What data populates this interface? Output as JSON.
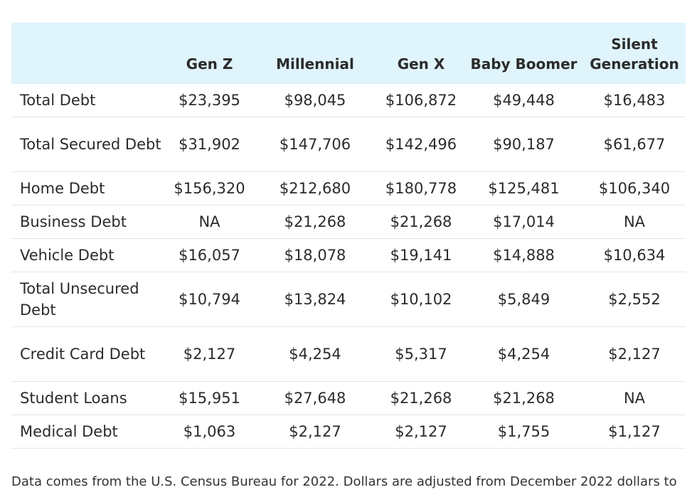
{
  "table": {
    "headers": [
      "",
      "Gen Z",
      "Millennial",
      "Gen X",
      "Baby Boomer",
      "Silent Generation"
    ],
    "rows": [
      {
        "label": "Total Debt",
        "values": [
          "$23,395",
          "$98,045",
          "$106,872",
          "$49,448",
          "$16,483"
        ]
      },
      {
        "label": "Total Secured Debt",
        "values": [
          "$31,902",
          "$147,706",
          "$142,496",
          "$90,187",
          "$61,677"
        ]
      },
      {
        "label": "Home Debt",
        "values": [
          "$156,320",
          "$212,680",
          "$180,778",
          "$125,481",
          "$106,340"
        ]
      },
      {
        "label": "Business Debt",
        "values": [
          "NA",
          "$21,268",
          "$21,268",
          "$17,014",
          "NA"
        ]
      },
      {
        "label": "Vehicle Debt",
        "values": [
          "$16,057",
          "$18,078",
          "$19,141",
          "$14,888",
          "$10,634"
        ]
      },
      {
        "label": "Total Unsecured Debt",
        "values": [
          "$10,794",
          "$13,824",
          "$10,102",
          "$5,849",
          "$2,552"
        ]
      },
      {
        "label": "Credit Card Debt",
        "values": [
          "$2,127",
          "$4,254",
          "$5,317",
          "$4,254",
          "$2,127"
        ]
      },
      {
        "label": "Student Loans",
        "values": [
          "$15,951",
          "$27,648",
          "$21,268",
          "$21,268",
          "NA"
        ]
      },
      {
        "label": "Medical Debt",
        "values": [
          "$1,063",
          "$2,127",
          "$2,127",
          "$1,755",
          "$1,127"
        ]
      }
    ]
  },
  "footnote": "Data comes from the U.S. Census Bureau for 2022. Dollars are adjusted from December 2022 dollars to"
}
